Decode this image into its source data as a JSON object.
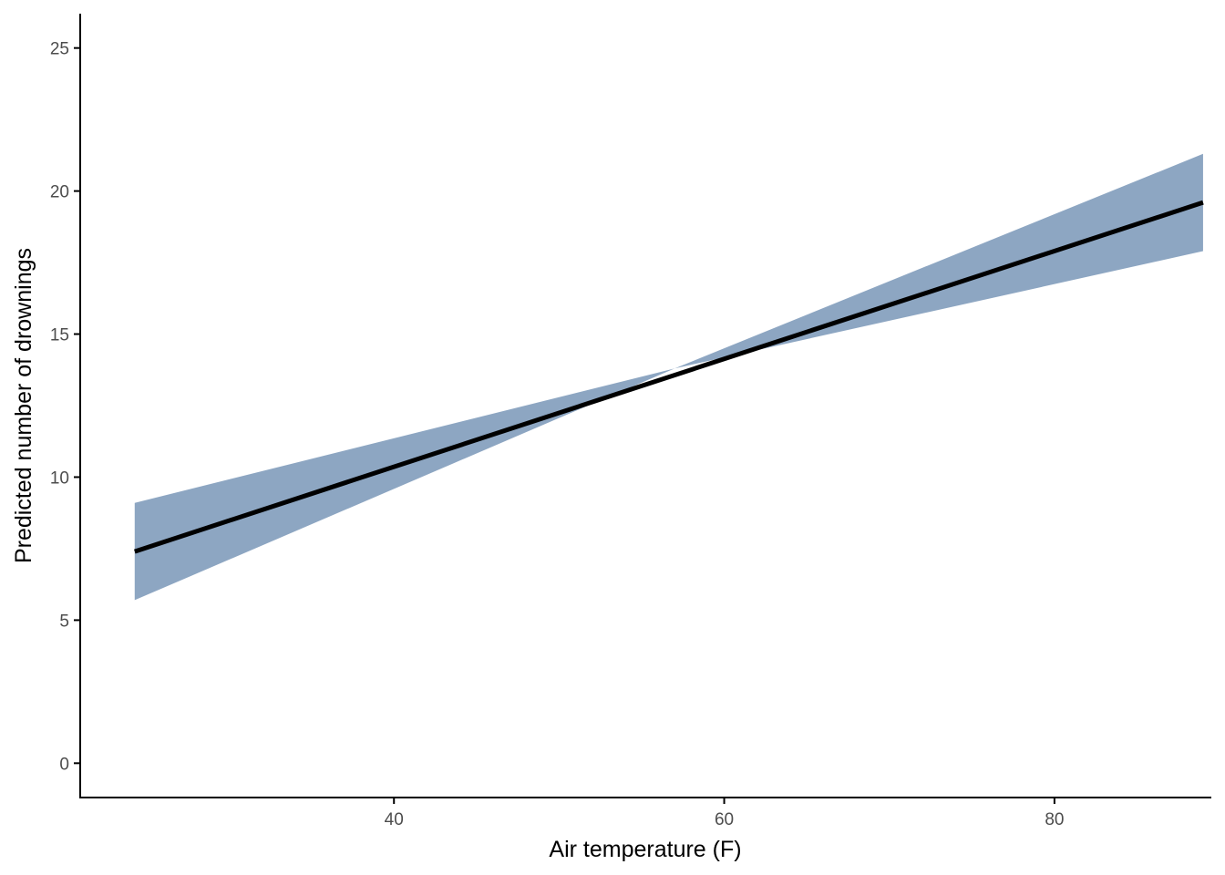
{
  "chart_data": {
    "type": "area",
    "title": "",
    "xlabel": "Air temperature (F)",
    "ylabel": "Predicted number of drownings",
    "xlim": [
      21,
      89.5
    ],
    "ylim": [
      -1.2,
      26.2
    ],
    "x_ticks": [
      40,
      60,
      80
    ],
    "y_ticks": [
      0,
      5,
      10,
      15,
      20,
      25
    ],
    "grid": false,
    "legend": "none",
    "series": [
      {
        "type": "line",
        "x": [
          24.3,
          89
        ],
        "y": [
          7.4,
          19.6
        ],
        "color": "#000000"
      },
      {
        "type": "ribbon",
        "x": [
          24.3,
          57,
          89
        ],
        "lower": [
          5.7,
          13.8,
          17.9
        ],
        "upper": [
          9.1,
          13.8,
          21.3
        ],
        "color": "#8da6c2"
      }
    ]
  }
}
